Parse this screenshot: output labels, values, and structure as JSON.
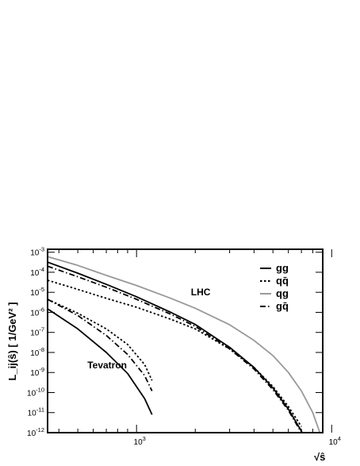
{
  "chart_data": {
    "type": "line",
    "title": "",
    "xlabel": "√ŝ",
    "ylabel": "L_ij(ŝ) [ 1/GeV² ]",
    "x_scale": "log",
    "y_scale": "log",
    "xlim": [
      350,
      9000
    ],
    "ylim": [
      1e-12,
      0.0014
    ],
    "legend_position": "top-right",
    "x_tick_labels": [
      {
        "value": 1000,
        "base": "10",
        "exp": "3"
      },
      {
        "value": 10000,
        "base": "10",
        "exp": "4"
      }
    ],
    "y_tick_labels": [
      {
        "value": 1e-12,
        "base": "10",
        "exp": "-12"
      },
      {
        "value": 1e-11,
        "base": "10",
        "exp": "-11"
      },
      {
        "value": 1e-10,
        "base": "10",
        "exp": "-10"
      },
      {
        "value": 1e-09,
        "base": "10",
        "exp": "-9"
      },
      {
        "value": 1e-08,
        "base": "10",
        "exp": "-8"
      },
      {
        "value": 1e-07,
        "base": "10",
        "exp": "-7"
      },
      {
        "value": 1e-06,
        "base": "10",
        "exp": "-6"
      },
      {
        "value": 1e-05,
        "base": "10",
        "exp": "-5"
      },
      {
        "value": 0.0001,
        "base": "10",
        "exp": "-4"
      },
      {
        "value": 0.001,
        "base": "10",
        "exp": "-3"
      }
    ],
    "legend": [
      {
        "key": "gg",
        "name": "gg",
        "color": "#000000",
        "dash": "solid"
      },
      {
        "key": "qqbar",
        "name": "qq̄",
        "color": "#000000",
        "dash": "dotted"
      },
      {
        "key": "qg",
        "name": "qg",
        "color": "#999999",
        "dash": "solid"
      },
      {
        "key": "gqbar",
        "name": "gq̄",
        "color": "#000000",
        "dash": "dashdot"
      }
    ],
    "annotations": [
      {
        "text": "LHC",
        "x": 1900,
        "y": 7e-06
      },
      {
        "text": "Tevatron",
        "x": 560,
        "y": 1.6e-09
      }
    ],
    "series": [
      {
        "collider": "LHC",
        "key": "gg",
        "color": "#000000",
        "dash": "solid",
        "x": [
          350,
          500,
          700,
          1000,
          1500,
          2000,
          3000,
          4000,
          5000,
          6000,
          7000,
          7500
        ],
        "y": [
          0.00032,
          9e-05,
          2.5e-05,
          6e-06,
          1e-06,
          2.5e-07,
          1.8e-08,
          1.8e-09,
          1.7e-10,
          1.5e-11,
          1.2e-12,
          3e-13
        ]
      },
      {
        "collider": "LHC",
        "key": "gqbar",
        "color": "#000000",
        "dash": "dashdot",
        "x": [
          350,
          500,
          700,
          1000,
          1500,
          2000,
          3000,
          4000,
          5000,
          6000,
          7000
        ],
        "y": [
          0.0002,
          6e-05,
          1.8e-05,
          4.5e-06,
          8e-07,
          2e-07,
          1.5e-08,
          1.5e-09,
          1.4e-10,
          1.3e-11,
          1e-12
        ]
      },
      {
        "collider": "LHC",
        "key": "qqbar",
        "color": "#000000",
        "dash": "dotted",
        "x": [
          350,
          500,
          700,
          1000,
          1500,
          2000,
          3000,
          4000,
          5000,
          6000,
          7000
        ],
        "y": [
          4e-05,
          1.4e-05,
          5e-06,
          1.8e-06,
          4.5e-07,
          1.5e-07,
          1.5e-08,
          1.8e-09,
          2e-10,
          2e-11,
          2e-12
        ]
      },
      {
        "collider": "LHC",
        "key": "qg",
        "color": "#999999",
        "dash": "solid",
        "x": [
          350,
          500,
          700,
          1000,
          1500,
          2000,
          3000,
          4000,
          5000,
          6000,
          7000,
          8000,
          8700
        ],
        "y": [
          0.0006,
          0.00022,
          7e-05,
          2.2e-05,
          5e-06,
          1.6e-06,
          2.4e-07,
          4e-08,
          7e-09,
          1e-09,
          1.2e-10,
          1e-11,
          1e-12
        ]
      },
      {
        "collider": "Tevatron",
        "key": "gg",
        "color": "#000000",
        "dash": "solid",
        "x": [
          350,
          500,
          700,
          900,
          1100,
          1200
        ],
        "y": [
          1.5e-06,
          1.5e-07,
          1e-08,
          9e-10,
          5e-11,
          8e-12
        ]
      },
      {
        "collider": "Tevatron",
        "key": "gqbar",
        "color": "#000000",
        "dash": "dashdot",
        "x": [
          350,
          500,
          700,
          900,
          1100,
          1200
        ],
        "y": [
          4.5e-06,
          7e-07,
          7e-08,
          8e-09,
          7e-10,
          1.2e-10
        ]
      },
      {
        "collider": "Tevatron",
        "key": "qqbar",
        "color": "#000000",
        "dash": "dotted",
        "x": [
          350,
          500,
          700,
          900,
          1100,
          1200
        ],
        "y": [
          4.5e-06,
          9e-07,
          1.5e-07,
          2.5e-08,
          2.5e-09,
          4e-10
        ]
      }
    ]
  }
}
